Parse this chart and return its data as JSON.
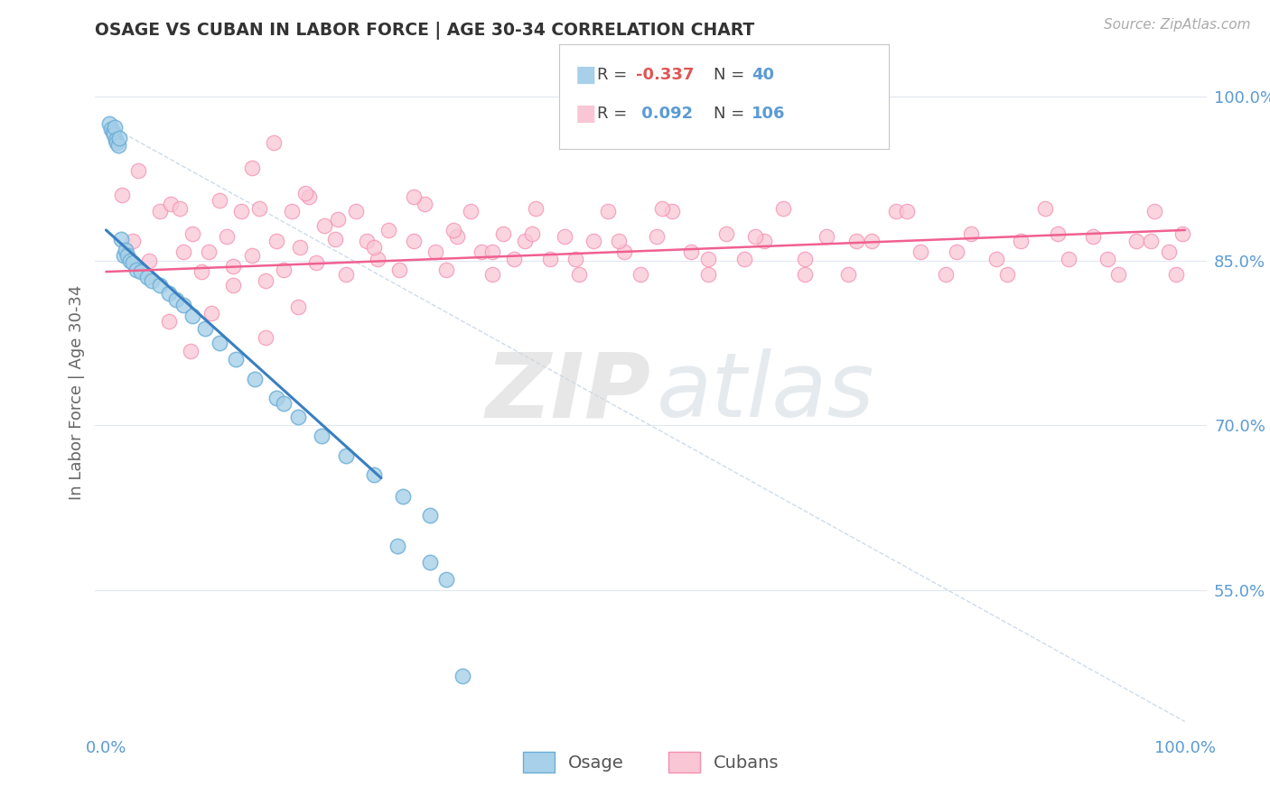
{
  "title": "OSAGE VS CUBAN IN LABOR FORCE | AGE 30-34 CORRELATION CHART",
  "source_text": "Source: ZipAtlas.com",
  "ylabel": "In Labor Force | Age 30-34",
  "osage_color": "#a8d0e8",
  "osage_edge_color": "#6aaed6",
  "cuban_color": "#f9c6d5",
  "cuban_edge_color": "#f48fb1",
  "osage_line_color": "#3a7fc1",
  "cuban_line_color": "#f06090",
  "diag_color": "#c8d8e8",
  "tick_color": "#5b9bd5",
  "background_color": "#ffffff",
  "r1_color": "#e05555",
  "r2_color": "#5b9bd5",
  "n_color": "#5b9bd5",
  "ylim_low": 0.42,
  "ylim_high": 1.04,
  "xlim_low": -0.01,
  "xlim_high": 1.02,
  "osage_x": [
    0.003,
    0.005,
    0.006,
    0.007,
    0.008,
    0.009,
    0.01,
    0.011,
    0.012,
    0.014,
    0.016,
    0.018,
    0.02,
    0.022,
    0.025,
    0.028,
    0.032,
    0.038,
    0.042,
    0.05,
    0.058,
    0.065,
    0.072,
    0.08,
    0.092,
    0.105,
    0.12,
    0.138,
    0.158,
    0.178,
    0.2,
    0.222,
    0.248,
    0.275,
    0.3,
    0.165,
    0.27,
    0.3,
    0.315,
    0.33
  ],
  "osage_y": [
    0.975,
    0.97,
    0.968,
    0.965,
    0.972,
    0.96,
    0.958,
    0.955,
    0.962,
    0.87,
    0.855,
    0.86,
    0.855,
    0.85,
    0.848,
    0.842,
    0.84,
    0.835,
    0.832,
    0.828,
    0.82,
    0.815,
    0.81,
    0.8,
    0.788,
    0.775,
    0.76,
    0.742,
    0.725,
    0.708,
    0.69,
    0.672,
    0.655,
    0.635,
    0.618,
    0.72,
    0.59,
    0.575,
    0.56,
    0.472
  ],
  "cuban_x": [
    0.015,
    0.025,
    0.03,
    0.04,
    0.05,
    0.06,
    0.068,
    0.072,
    0.08,
    0.088,
    0.095,
    0.105,
    0.112,
    0.118,
    0.125,
    0.135,
    0.142,
    0.148,
    0.158,
    0.165,
    0.172,
    0.18,
    0.188,
    0.195,
    0.202,
    0.212,
    0.222,
    0.232,
    0.242,
    0.252,
    0.262,
    0.272,
    0.285,
    0.295,
    0.305,
    0.315,
    0.325,
    0.338,
    0.348,
    0.358,
    0.368,
    0.378,
    0.388,
    0.398,
    0.412,
    0.425,
    0.438,
    0.452,
    0.465,
    0.48,
    0.495,
    0.51,
    0.525,
    0.542,
    0.558,
    0.575,
    0.592,
    0.61,
    0.628,
    0.648,
    0.668,
    0.688,
    0.71,
    0.732,
    0.755,
    0.778,
    0.802,
    0.825,
    0.848,
    0.87,
    0.892,
    0.915,
    0.938,
    0.955,
    0.972,
    0.985,
    0.992,
    0.998,
    0.135,
    0.155,
    0.185,
    0.215,
    0.248,
    0.285,
    0.322,
    0.358,
    0.395,
    0.435,
    0.475,
    0.515,
    0.558,
    0.602,
    0.648,
    0.695,
    0.742,
    0.788,
    0.835,
    0.882,
    0.928,
    0.968,
    0.058,
    0.078,
    0.098,
    0.118,
    0.148,
    0.178
  ],
  "cuban_y": [
    0.91,
    0.868,
    0.932,
    0.85,
    0.895,
    0.902,
    0.898,
    0.858,
    0.875,
    0.84,
    0.858,
    0.905,
    0.872,
    0.845,
    0.895,
    0.855,
    0.898,
    0.832,
    0.868,
    0.842,
    0.895,
    0.862,
    0.908,
    0.848,
    0.882,
    0.87,
    0.838,
    0.895,
    0.868,
    0.852,
    0.878,
    0.842,
    0.868,
    0.902,
    0.858,
    0.842,
    0.872,
    0.895,
    0.858,
    0.838,
    0.875,
    0.852,
    0.868,
    0.898,
    0.852,
    0.872,
    0.838,
    0.868,
    0.895,
    0.858,
    0.838,
    0.872,
    0.895,
    0.858,
    0.838,
    0.875,
    0.852,
    0.868,
    0.898,
    0.852,
    0.872,
    0.838,
    0.868,
    0.895,
    0.858,
    0.838,
    0.875,
    0.852,
    0.868,
    0.898,
    0.852,
    0.872,
    0.838,
    0.868,
    0.895,
    0.858,
    0.838,
    0.875,
    0.935,
    0.958,
    0.912,
    0.888,
    0.862,
    0.908,
    0.878,
    0.858,
    0.875,
    0.852,
    0.868,
    0.898,
    0.852,
    0.872,
    0.838,
    0.868,
    0.895,
    0.858,
    0.838,
    0.875,
    0.852,
    0.868,
    0.795,
    0.768,
    0.802,
    0.828,
    0.78,
    0.808
  ]
}
